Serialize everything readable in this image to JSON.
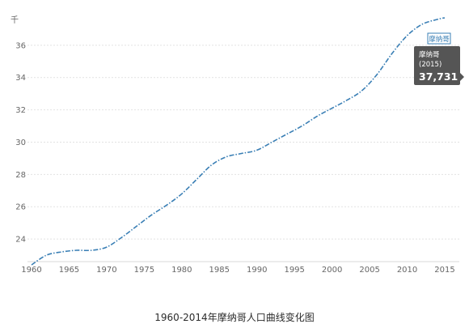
{
  "caption": "1960-2014年摩纳哥人口曲线变化图",
  "chart_data": {
    "type": "line",
    "unit_label": "千",
    "x_ticks": [
      1960,
      1965,
      1970,
      1975,
      1980,
      1985,
      1990,
      1995,
      2000,
      2005,
      2010,
      2015
    ],
    "y_ticks": [
      24,
      26,
      28,
      30,
      32,
      34,
      36
    ],
    "xlim": [
      1960,
      2015
    ],
    "ylim": [
      22.6,
      38.1
    ],
    "grid": "horizontal dashed",
    "series": [
      {
        "name": "摩纳哥",
        "color": "#3a7fb5",
        "x": [
          1960,
          1962,
          1964,
          1966,
          1968,
          1970,
          1972,
          1974,
          1976,
          1978,
          1980,
          1982,
          1984,
          1986,
          1988,
          1990,
          1992,
          1994,
          1996,
          1998,
          2000,
          2002,
          2004,
          2006,
          2008,
          2010,
          2012,
          2014,
          2015
        ],
        "values": [
          22.4,
          23.0,
          23.2,
          23.3,
          23.3,
          23.5,
          24.1,
          24.8,
          25.5,
          26.1,
          26.8,
          27.7,
          28.6,
          29.1,
          29.3,
          29.5,
          30.0,
          30.5,
          31.0,
          31.6,
          32.1,
          32.6,
          33.2,
          34.2,
          35.5,
          36.6,
          37.3,
          37.6,
          37.7
        ]
      }
    ],
    "tooltip": {
      "series": "摩纳哥",
      "year_label": "(2015)",
      "value_label": "37,731"
    }
  }
}
